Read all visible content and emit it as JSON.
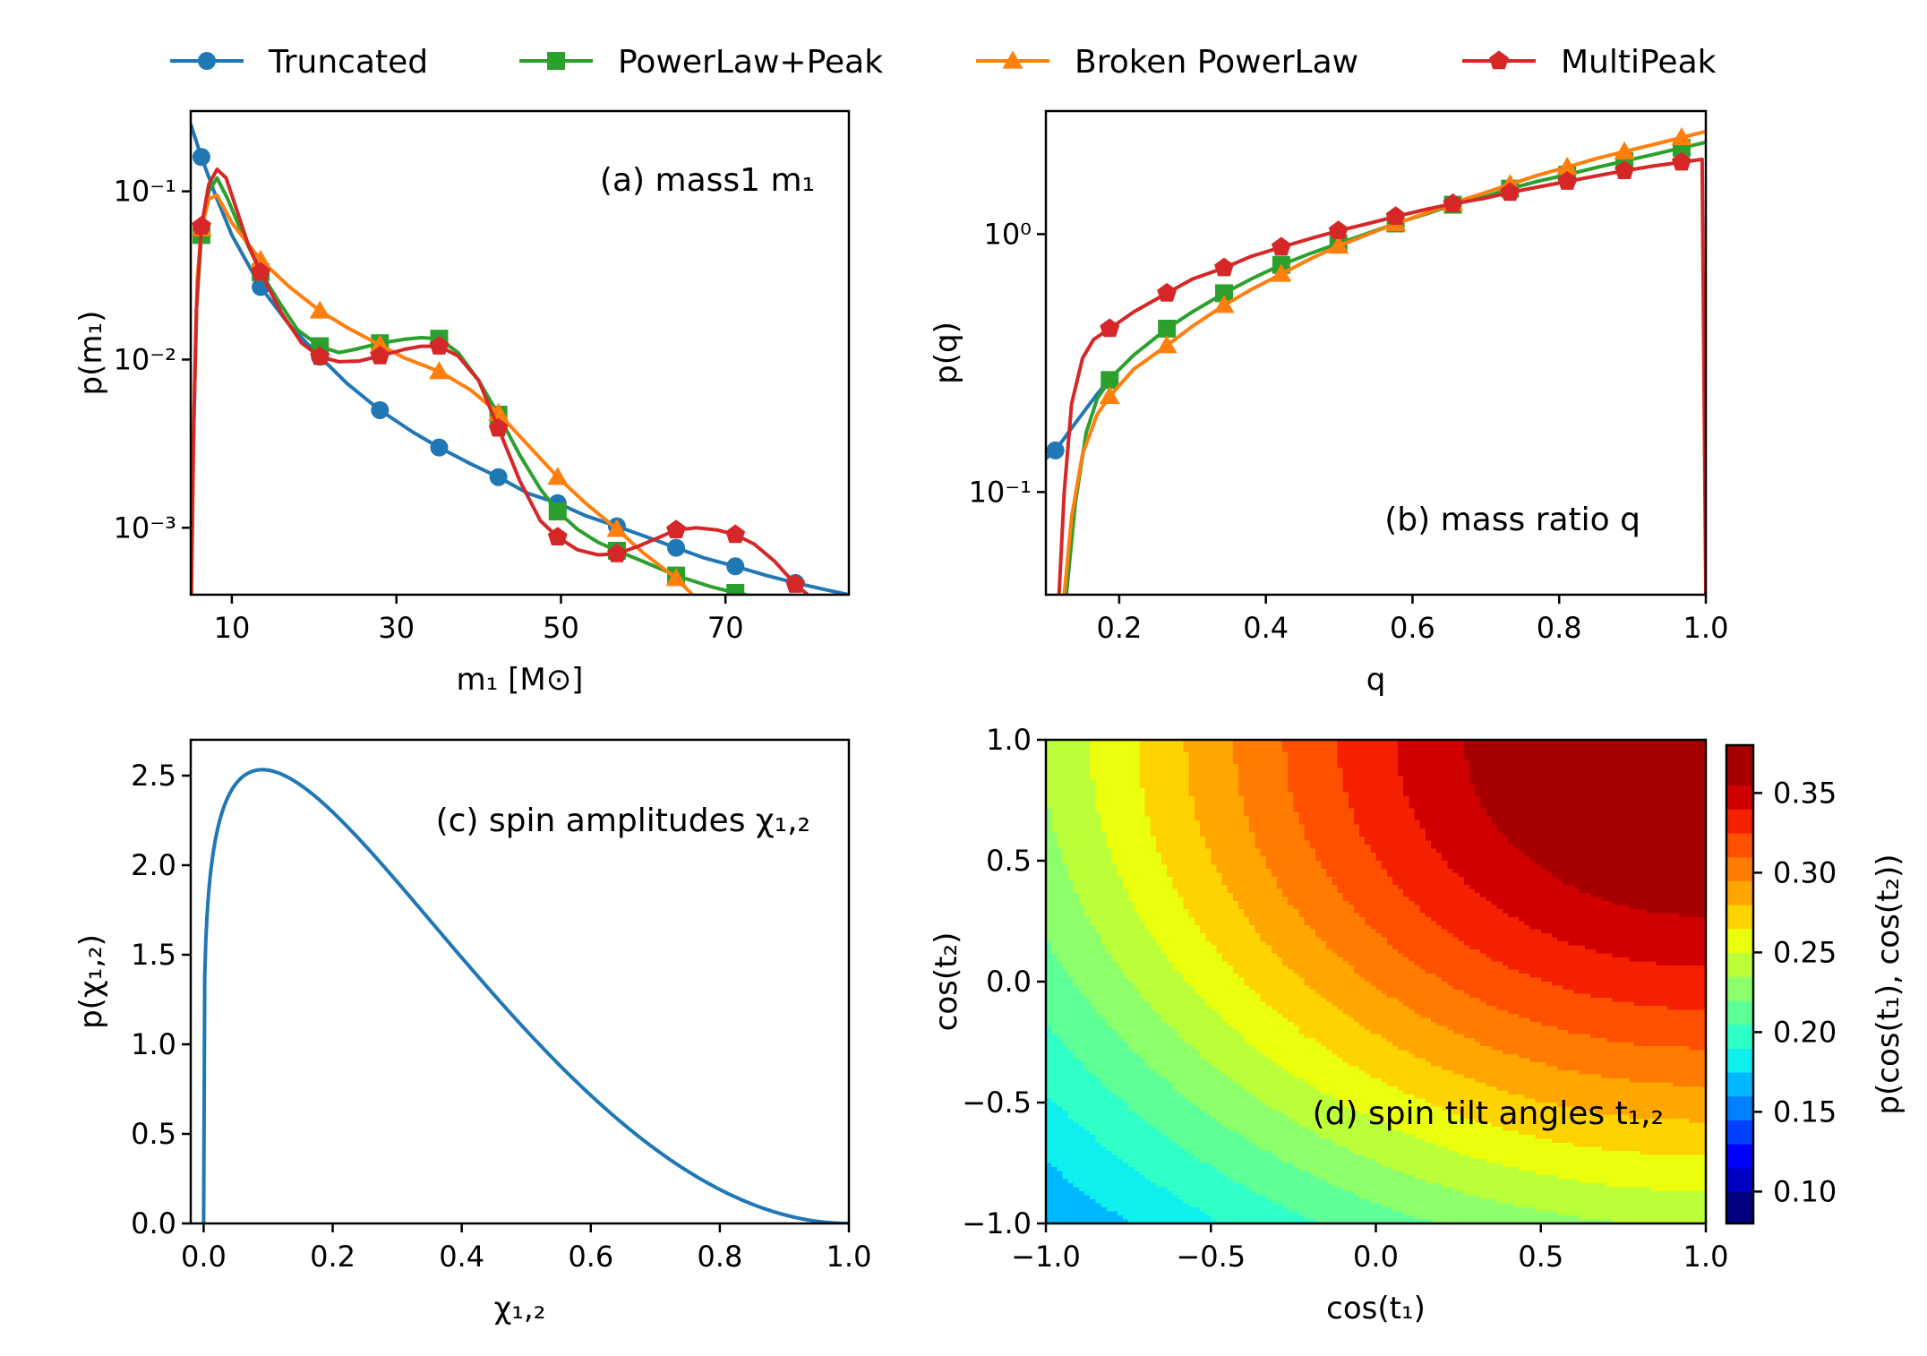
{
  "legend": [
    {
      "label": "Truncated",
      "color": "#1f77b4",
      "marker": "circle"
    },
    {
      "label": "PowerLaw+Peak",
      "color": "#2ca02c",
      "marker": "square"
    },
    {
      "label": "Broken PowerLaw",
      "color": "#ff7f0e",
      "marker": "triangle"
    },
    {
      "label": "MultiPeak",
      "color": "#d62728",
      "marker": "pentagon"
    }
  ],
  "chart_data": [
    {
      "id": "a",
      "type": "line",
      "title": "(a) mass1 m₁",
      "xlabel": "m₁ [M⊙]",
      "ylabel": "p(m₁)",
      "xscale": "linear",
      "yscale": "log",
      "xlim": [
        5,
        85
      ],
      "ylim": [
        0.0004,
        0.3
      ],
      "xticks": [
        {
          "value": 10,
          "label": "10"
        },
        {
          "value": 30,
          "label": "30"
        },
        {
          "value": 50,
          "label": "50"
        },
        {
          "value": 70,
          "label": "70"
        }
      ],
      "yticks": [
        {
          "value": 0.001,
          "label": "10⁻³"
        },
        {
          "value": 0.01,
          "label": "10⁻²"
        },
        {
          "value": 0.1,
          "label": "10⁻¹"
        }
      ],
      "series": [
        {
          "name": "Truncated",
          "color": "#1f77b4",
          "marker": "circle",
          "x": [
            5,
            6.3,
            8,
            10,
            13.5,
            17,
            20.7,
            24,
            28,
            32,
            35.2,
            39,
            42.4,
            46,
            49.6,
            53,
            56.8,
            60.5,
            64,
            67.5,
            71.2,
            75,
            78.5,
            82,
            85
          ],
          "y": [
            0.25,
            0.16,
            0.095,
            0.055,
            0.027,
            0.016,
            0.0104,
            0.0072,
            0.005,
            0.0037,
            0.003,
            0.0024,
            0.002,
            0.0016,
            0.0014,
            0.00118,
            0.00102,
            0.00088,
            0.00076,
            0.00066,
            0.00059,
            0.00052,
            0.00047,
            0.00043,
            0.0004
          ],
          "mx": [
            6.3,
            13.5,
            20.7,
            28,
            35.2,
            42.4,
            49.6,
            56.8,
            64,
            71.2,
            78.5
          ]
        },
        {
          "name": "PowerLaw+Peak",
          "color": "#2ca02c",
          "marker": "square",
          "x": [
            5.05,
            5.3,
            5.7,
            6.3,
            7.2,
            8.2,
            9.5,
            11,
            13.5,
            16,
            18,
            20.7,
            23,
            25,
            28,
            31,
            33,
            35.2,
            37.5,
            40,
            42.4,
            45,
            47.5,
            49.6,
            52,
            54.5,
            56.8,
            60,
            64,
            68,
            71.2,
            72.5
          ],
          "y": [
            0.0004,
            0.003,
            0.02,
            0.055,
            0.1,
            0.12,
            0.09,
            0.06,
            0.033,
            0.021,
            0.015,
            0.012,
            0.011,
            0.0115,
            0.0125,
            0.0132,
            0.0135,
            0.0133,
            0.011,
            0.0075,
            0.0047,
            0.0027,
            0.0017,
            0.00125,
            0.00098,
            0.00082,
            0.00073,
            0.00063,
            0.00052,
            0.00045,
            0.00041,
            0.0004
          ],
          "mx": [
            6.3,
            13.5,
            20.7,
            28,
            35.2,
            42.4,
            49.6,
            56.8,
            64,
            71.2
          ]
        },
        {
          "name": "Broken PowerLaw",
          "color": "#ff7f0e",
          "marker": "triangle",
          "x": [
            5.1,
            5.4,
            5.8,
            6.3,
            7.2,
            8.2,
            10,
            13.5,
            17,
            20.7,
            24,
            28,
            31,
            35.2,
            39,
            42.4,
            46,
            49.6,
            53,
            56.8,
            60,
            64,
            66
          ],
          "y": [
            0.0004,
            0.005,
            0.03,
            0.06,
            0.09,
            0.095,
            0.065,
            0.039,
            0.027,
            0.0195,
            0.0155,
            0.0122,
            0.0102,
            0.0085,
            0.0066,
            0.0048,
            0.0031,
            0.002,
            0.0014,
            0.00098,
            0.00071,
            0.0005,
            0.0004
          ],
          "mx": [
            6.3,
            13.5,
            20.7,
            28,
            35.2,
            42.4,
            49.6,
            56.8,
            64
          ]
        },
        {
          "name": "MultiPeak",
          "color": "#d62728",
          "marker": "pentagon",
          "x": [
            5.05,
            5.3,
            5.7,
            6.3,
            7.2,
            8.2,
            9.3,
            10.5,
            12,
            13.5,
            16,
            18.5,
            20.7,
            23,
            25.5,
            28,
            31,
            33,
            35.2,
            37.5,
            40,
            42.4,
            45,
            47.5,
            49.6,
            52,
            54.5,
            56.8,
            59.5,
            62,
            64,
            66.5,
            69,
            71.2,
            73.5,
            76,
            78.5,
            80
          ],
          "y": [
            0.0004,
            0.003,
            0.02,
            0.062,
            0.11,
            0.135,
            0.12,
            0.08,
            0.048,
            0.033,
            0.019,
            0.0125,
            0.0104,
            0.0097,
            0.0098,
            0.0105,
            0.0115,
            0.012,
            0.012,
            0.0105,
            0.0075,
            0.0039,
            0.0019,
            0.0011,
            0.00088,
            0.00074,
            0.00069,
            0.0007,
            0.00078,
            0.00088,
            0.00097,
            0.001,
            0.00097,
            0.00091,
            0.0008,
            0.00063,
            0.00046,
            0.0004
          ],
          "mx": [
            6.3,
            13.5,
            20.7,
            28,
            35.2,
            42.4,
            49.6,
            56.8,
            64,
            71.2,
            78.5
          ]
        }
      ]
    },
    {
      "id": "b",
      "type": "line",
      "title": "(b) mass ratio q",
      "xlabel": "q",
      "ylabel": "p(q)",
      "xscale": "linear",
      "yscale": "log",
      "xlim": [
        0.1,
        1.0
      ],
      "ylim": [
        0.04,
        3.0
      ],
      "xticks": [
        {
          "value": 0.2,
          "label": "0.2"
        },
        {
          "value": 0.4,
          "label": "0.4"
        },
        {
          "value": 0.6,
          "label": "0.6"
        },
        {
          "value": 0.8,
          "label": "0.8"
        },
        {
          "value": 1.0,
          "label": "1.0"
        }
      ],
      "yticks": [
        {
          "value": 0.1,
          "label": "10⁻¹"
        },
        {
          "value": 1.0,
          "label": "10⁰"
        }
      ],
      "series": [
        {
          "name": "Truncated",
          "color": "#1f77b4",
          "marker": "circle",
          "x": [
            0.1,
            0.113,
            0.14,
            0.17,
            0.19
          ],
          "y": [
            0.135,
            0.145,
            0.185,
            0.24,
            0.28
          ],
          "mx": [
            0.113
          ]
        },
        {
          "name": "PowerLaw+Peak",
          "color": "#2ca02c",
          "marker": "square",
          "x": [
            0.128,
            0.14,
            0.155,
            0.17,
            0.19,
            0.22,
            0.265,
            0.3,
            0.343,
            0.38,
            0.421,
            0.46,
            0.499,
            0.54,
            0.577,
            0.62,
            0.655,
            0.7,
            0.733,
            0.77,
            0.811,
            0.85,
            0.889,
            0.93,
            0.967,
            1.0
          ],
          "y": [
            0.04,
            0.09,
            0.17,
            0.23,
            0.28,
            0.34,
            0.43,
            0.5,
            0.59,
            0.67,
            0.76,
            0.84,
            0.92,
            1.01,
            1.1,
            1.2,
            1.3,
            1.4,
            1.5,
            1.6,
            1.7,
            1.81,
            1.92,
            2.04,
            2.16,
            2.27
          ],
          "mx": [
            0.187,
            0.265,
            0.343,
            0.421,
            0.499,
            0.577,
            0.655,
            0.733,
            0.811,
            0.889,
            0.967
          ]
        },
        {
          "name": "Broken PowerLaw",
          "color": "#ff7f0e",
          "marker": "triangle",
          "x": [
            0.125,
            0.135,
            0.15,
            0.17,
            0.187,
            0.22,
            0.265,
            0.3,
            0.343,
            0.38,
            0.421,
            0.46,
            0.499,
            0.54,
            0.577,
            0.62,
            0.655,
            0.7,
            0.733,
            0.77,
            0.811,
            0.85,
            0.889,
            0.93,
            0.967,
            1.0
          ],
          "y": [
            0.04,
            0.08,
            0.14,
            0.2,
            0.235,
            0.3,
            0.37,
            0.44,
            0.53,
            0.61,
            0.7,
            0.8,
            0.9,
            1.0,
            1.1,
            1.21,
            1.32,
            1.45,
            1.56,
            1.69,
            1.82,
            1.96,
            2.09,
            2.23,
            2.37,
            2.5
          ],
          "mx": [
            0.187,
            0.265,
            0.343,
            0.421,
            0.499,
            0.577,
            0.655,
            0.733,
            0.811,
            0.889,
            0.967
          ]
        },
        {
          "name": "MultiPeak",
          "color": "#d62728",
          "marker": "pentagon",
          "x": [
            0.118,
            0.125,
            0.135,
            0.15,
            0.165,
            0.187,
            0.22,
            0.265,
            0.3,
            0.343,
            0.38,
            0.421,
            0.46,
            0.499,
            0.54,
            0.577,
            0.62,
            0.655,
            0.7,
            0.733,
            0.77,
            0.811,
            0.85,
            0.889,
            0.93,
            0.967,
            0.995,
            1.0
          ],
          "y": [
            0.04,
            0.1,
            0.22,
            0.33,
            0.39,
            0.43,
            0.5,
            0.59,
            0.67,
            0.74,
            0.82,
            0.89,
            0.96,
            1.03,
            1.1,
            1.17,
            1.25,
            1.31,
            1.38,
            1.45,
            1.52,
            1.6,
            1.68,
            1.76,
            1.84,
            1.9,
            1.95,
            0.04
          ],
          "mx": [
            0.187,
            0.265,
            0.343,
            0.421,
            0.499,
            0.577,
            0.655,
            0.733,
            0.811,
            0.889,
            0.967
          ]
        }
      ]
    },
    {
      "id": "c",
      "type": "line",
      "title": "(c) spin amplitudes χ₁,₂",
      "xlabel": "χ₁,₂",
      "ylabel": "p(χ₁,₂)",
      "xscale": "linear",
      "yscale": "linear",
      "xlim": [
        -0.02,
        1.0
      ],
      "ylim": [
        0.0,
        2.7
      ],
      "xticks": [
        {
          "value": 0.0,
          "label": "0.0"
        },
        {
          "value": 0.2,
          "label": "0.2"
        },
        {
          "value": 0.4,
          "label": "0.4"
        },
        {
          "value": 0.6,
          "label": "0.6"
        },
        {
          "value": 0.8,
          "label": "0.8"
        },
        {
          "value": 1.0,
          "label": "1.0"
        }
      ],
      "yticks": [
        {
          "value": 0.0,
          "label": "0.0"
        },
        {
          "value": 0.5,
          "label": "0.5"
        },
        {
          "value": 1.0,
          "label": "1.0"
        },
        {
          "value": 1.5,
          "label": "1.5"
        },
        {
          "value": 2.0,
          "label": "2.0"
        },
        {
          "value": 2.5,
          "label": "2.5"
        }
      ],
      "series": [
        {
          "name": "spin amplitude",
          "color": "#1f77b4",
          "model": "beta",
          "alpha": 1.2,
          "beta": 3.0,
          "scale": 2.533
        }
      ]
    },
    {
      "id": "d",
      "type": "heatmap",
      "title": "(d) spin tilt angles t₁,₂",
      "xlabel": "cos(t₁)",
      "ylabel": "cos(t₂)",
      "colorbar_label": "p(cos(t₁), cos(t₂))",
      "xlim": [
        -1.0,
        1.0
      ],
      "ylim": [
        -1.0,
        1.0
      ],
      "xticks": [
        {
          "value": -1.0,
          "label": "−1.0"
        },
        {
          "value": -0.5,
          "label": "−0.5"
        },
        {
          "value": 0.0,
          "label": "0.0"
        },
        {
          "value": 0.5,
          "label": "0.5"
        },
        {
          "value": 1.0,
          "label": "1.0"
        }
      ],
      "yticks": [
        {
          "value": -1.0,
          "label": "−1.0"
        },
        {
          "value": -0.5,
          "label": "−0.5"
        },
        {
          "value": 0.0,
          "label": "0.0"
        },
        {
          "value": 0.5,
          "label": "0.5"
        },
        {
          "value": 1.0,
          "label": "1.0"
        }
      ],
      "clim": [
        0.08,
        0.38
      ],
      "cticks": [
        {
          "value": 0.1,
          "label": "0.10"
        },
        {
          "value": 0.15,
          "label": "0.15"
        },
        {
          "value": 0.2,
          "label": "0.20"
        },
        {
          "value": 0.25,
          "label": "0.25"
        },
        {
          "value": 0.3,
          "label": "0.30"
        },
        {
          "value": 0.35,
          "label": "0.35"
        }
      ],
      "levels": [
        0.08,
        0.1,
        0.115,
        0.13,
        0.145,
        0.16,
        0.175,
        0.19,
        0.205,
        0.22,
        0.235,
        0.25,
        0.265,
        0.28,
        0.295,
        0.31,
        0.325,
        0.34,
        0.355,
        0.37,
        0.38
      ],
      "colors": [
        "#000080",
        "#0000c4",
        "#0000ff",
        "#0040ff",
        "#0080ff",
        "#00b8ff",
        "#0ff0ee",
        "#30ffc7",
        "#5fff97",
        "#8dff6a",
        "#bbff3b",
        "#eaff0d",
        "#ffd300",
        "#ffa700",
        "#ff7c00",
        "#ff5000",
        "#f42000",
        "#d00000",
        "#a80000"
      ],
      "model": {
        "base": 0.08,
        "amp": 0.3,
        "sigma": 1.75,
        "center": [
          1.0,
          1.0
        ]
      }
    }
  ]
}
